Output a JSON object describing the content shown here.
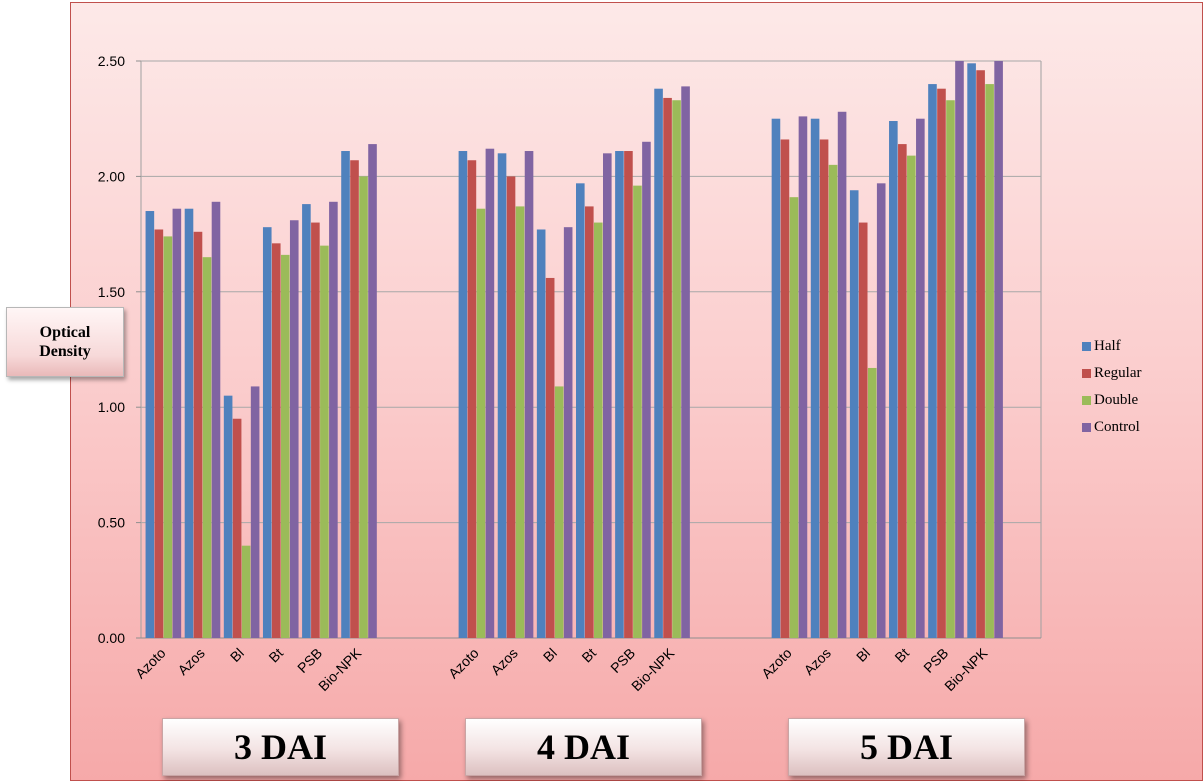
{
  "chart_data": {
    "type": "bar",
    "ylabel": "Optical Density",
    "ylim": [
      0,
      2.5
    ],
    "yticks": [
      "0.00",
      "0.50",
      "1.00",
      "1.50",
      "2.00",
      "2.50"
    ],
    "grid": true,
    "legend_position": "right",
    "categories": [
      "Azoto",
      "Azos",
      "Bl",
      "Bt",
      "PSB",
      "Bio-NPK"
    ],
    "groups": [
      {
        "label": "3 DAI",
        "series": [
          {
            "name": "Half",
            "color": "#4f81bd",
            "values": [
              1.85,
              1.86,
              1.05,
              1.78,
              1.88,
              2.11
            ]
          },
          {
            "name": "Regular",
            "color": "#c0504d",
            "values": [
              1.77,
              1.76,
              0.95,
              1.71,
              1.8,
              2.07
            ]
          },
          {
            "name": "Double",
            "color": "#9bbb59",
            "values": [
              1.74,
              1.65,
              0.4,
              1.66,
              1.7,
              2.0
            ]
          },
          {
            "name": "Control",
            "color": "#8064a2",
            "values": [
              1.86,
              1.89,
              1.09,
              1.81,
              1.89,
              2.14
            ]
          }
        ]
      },
      {
        "label": "4 DAI",
        "series": [
          {
            "name": "Half",
            "color": "#4f81bd",
            "values": [
              2.11,
              2.1,
              1.77,
              1.97,
              2.11,
              2.38
            ]
          },
          {
            "name": "Regular",
            "color": "#c0504d",
            "values": [
              2.07,
              2.0,
              1.56,
              1.87,
              2.11,
              2.34
            ]
          },
          {
            "name": "Double",
            "color": "#9bbb59",
            "values": [
              1.86,
              1.87,
              1.09,
              1.8,
              1.96,
              2.33
            ]
          },
          {
            "name": "Control",
            "color": "#8064a2",
            "values": [
              2.12,
              2.11,
              1.78,
              2.1,
              2.15,
              2.39
            ]
          }
        ]
      },
      {
        "label": "5 DAI",
        "series": [
          {
            "name": "Half",
            "color": "#4f81bd",
            "values": [
              2.25,
              2.25,
              1.94,
              2.24,
              2.4,
              2.49
            ]
          },
          {
            "name": "Regular",
            "color": "#c0504d",
            "values": [
              2.16,
              2.16,
              1.8,
              2.14,
              2.38,
              2.46
            ]
          },
          {
            "name": "Double",
            "color": "#9bbb59",
            "values": [
              1.91,
              2.05,
              1.17,
              2.09,
              2.33,
              2.4
            ]
          },
          {
            "name": "Control",
            "color": "#8064a2",
            "values": [
              2.26,
              2.28,
              1.97,
              2.25,
              2.5,
              2.5
            ]
          }
        ]
      }
    ]
  }
}
